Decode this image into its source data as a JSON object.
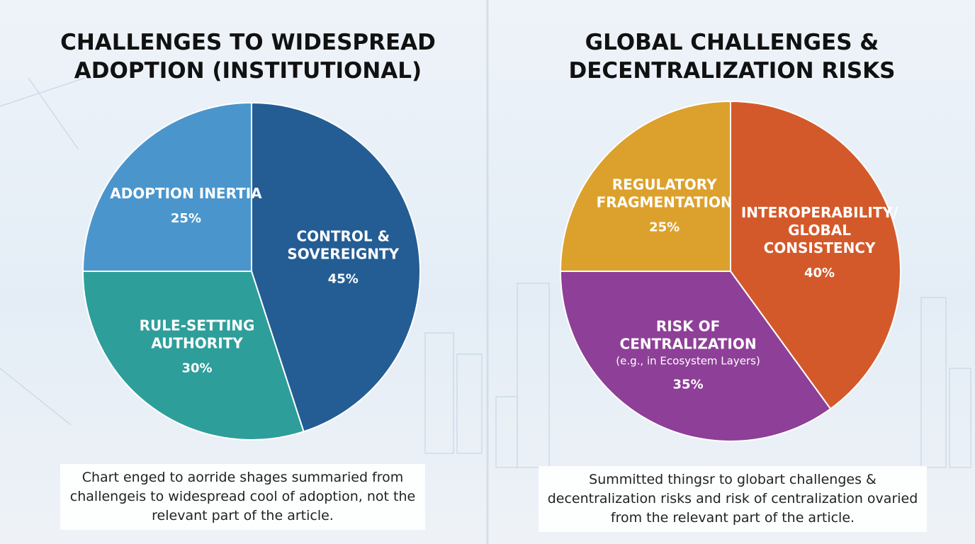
{
  "chart_data": [
    {
      "type": "pie",
      "title": "CHALLENGES TO WIDESPREAD ADOPTION (INSTITUTIONAL)",
      "categories": [
        "CONTROL & SOVEREIGNTY",
        "RULE-SETTING AUTHORITY",
        "ADOPTION INERTIA"
      ],
      "annotations": [
        null,
        null,
        null
      ],
      "values": [
        45,
        30,
        25
      ],
      "value_labels": [
        "45%",
        "30%",
        "25%"
      ],
      "colors": [
        "#245d94",
        "#2e9e9a",
        "#4a96cc"
      ],
      "caption": "Chart enged to aorride shages summaried from challengeis to widespread cool of adoption, not the relevant part of the article."
    },
    {
      "type": "pie",
      "title": "GLOBAL CHALLENGES & DECENTRALIZATION RISKS",
      "categories": [
        "INTEROPERABILITY/ GLOBAL CONSISTENCY",
        "RISK OF CENTRALIZATION",
        "REGULATORY FRAGMENTATION"
      ],
      "annotations": [
        null,
        "(e.g., in Ecosystem Layers)",
        null
      ],
      "values": [
        40,
        35,
        25
      ],
      "value_labels": [
        "40%",
        "35%",
        "25%"
      ],
      "colors": [
        "#d4592a",
        "#8e3f97",
        "#dca12c"
      ],
      "caption": "Summitted thingsr to globart challenges & decentralization risks and risk of centralization ovaried from the relevant part of the article."
    }
  ]
}
